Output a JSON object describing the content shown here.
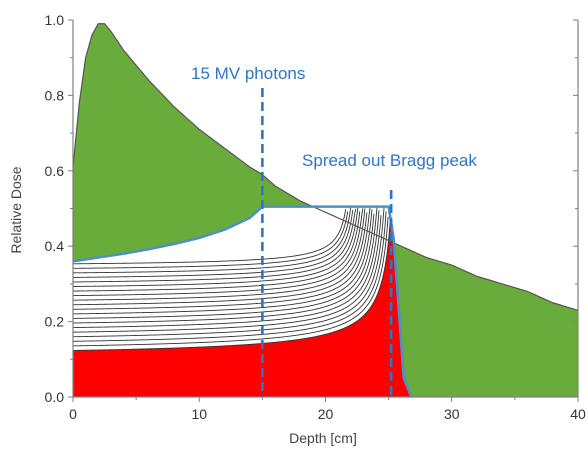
{
  "chart_data": {
    "type": "area",
    "xlabel": "Depth [cm]",
    "ylabel": "Relative Dose",
    "xlim": [
      0,
      40
    ],
    "ylim": [
      0,
      1.0
    ],
    "xticks": [
      "0",
      "10",
      "20",
      "30",
      "40"
    ],
    "yticks": [
      "0.0",
      "0.2",
      "0.4",
      "0.6",
      "0.8",
      "1.0"
    ],
    "grid": false,
    "colors": {
      "photon_fill": "#6aac3c",
      "distal_fill": "#ff0000",
      "sobp_line": "#4f8fc8",
      "annotation": "#2e75c5",
      "curve": "#333333",
      "axis": "#808080"
    },
    "series": [
      {
        "name": "15 MV photons",
        "x": [
          0,
          0.5,
          1,
          1.5,
          2,
          2.5,
          3,
          4,
          5,
          6,
          8,
          10,
          12,
          14,
          15,
          16,
          18,
          20,
          22,
          24,
          25,
          26,
          28,
          30,
          32,
          34,
          36,
          38,
          40
        ],
        "y": [
          0.61,
          0.78,
          0.9,
          0.96,
          0.99,
          0.99,
          0.97,
          0.92,
          0.88,
          0.84,
          0.77,
          0.71,
          0.66,
          0.61,
          0.59,
          0.56,
          0.52,
          0.49,
          0.46,
          0.43,
          0.415,
          0.4,
          0.37,
          0.35,
          0.32,
          0.3,
          0.28,
          0.25,
          0.23
        ]
      },
      {
        "name": "Spread out Bragg peak",
        "x": [
          0,
          2,
          4,
          6,
          8,
          10,
          12,
          14,
          15,
          25,
          25.4,
          26.2,
          26.8
        ],
        "y": [
          0.36,
          0.37,
          0.38,
          0.392,
          0.406,
          0.422,
          0.444,
          0.475,
          0.505,
          0.505,
          0.42,
          0.05,
          0.0
        ]
      }
    ],
    "pristine_peaks": {
      "count": 20,
      "entrance_dose_min": 0.105,
      "entrance_dose_max": 0.345,
      "range_cm": [
        15,
        25.2
      ]
    },
    "annotations": [
      {
        "text": "15 MV photons",
        "x": 15
      },
      {
        "text": "Spread out Bragg peak",
        "x": 25.2
      }
    ]
  }
}
